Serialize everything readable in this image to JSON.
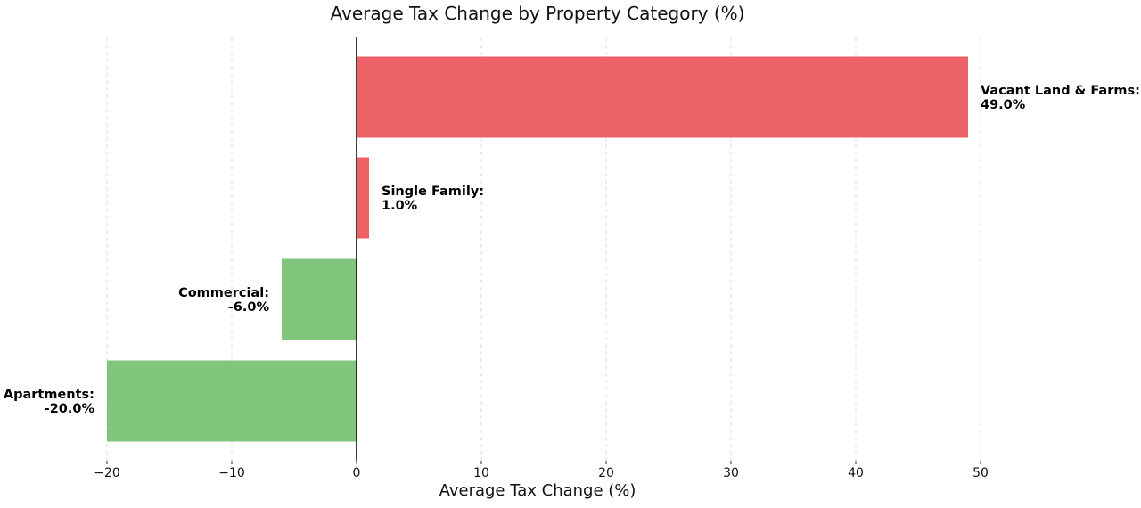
{
  "chart_data": {
    "type": "bar",
    "orientation": "horizontal",
    "title": "Average Tax Change by Property Category (%)",
    "xlabel": "Average Tax Change (%)",
    "ylabel": "",
    "xlim": [
      -20,
      55
    ],
    "x_ticks": [
      -20,
      -10,
      0,
      10,
      20,
      30,
      40,
      50
    ],
    "x_tick_labels": [
      "−20",
      "−10",
      "0",
      "10",
      "20",
      "30",
      "40",
      "50"
    ],
    "grid": "vertical dashed",
    "categories": [
      "Apartments",
      "Commercial",
      "Single Family",
      "Vacant Land & Farms"
    ],
    "values": [
      -20.0,
      -6.0,
      1.0,
      49.0
    ],
    "data_labels": [
      [
        "Apartments:",
        "-20.0%"
      ],
      [
        "Commercial:",
        "-6.0%"
      ],
      [
        "Single Family:",
        "1.0%"
      ],
      [
        "Vacant Land & Farms:",
        "49.0%"
      ]
    ],
    "colors": {
      "positive": "#e9474b",
      "negative": "#6cbc66",
      "zero_line": "#000000",
      "grid": "#dddddd"
    }
  }
}
